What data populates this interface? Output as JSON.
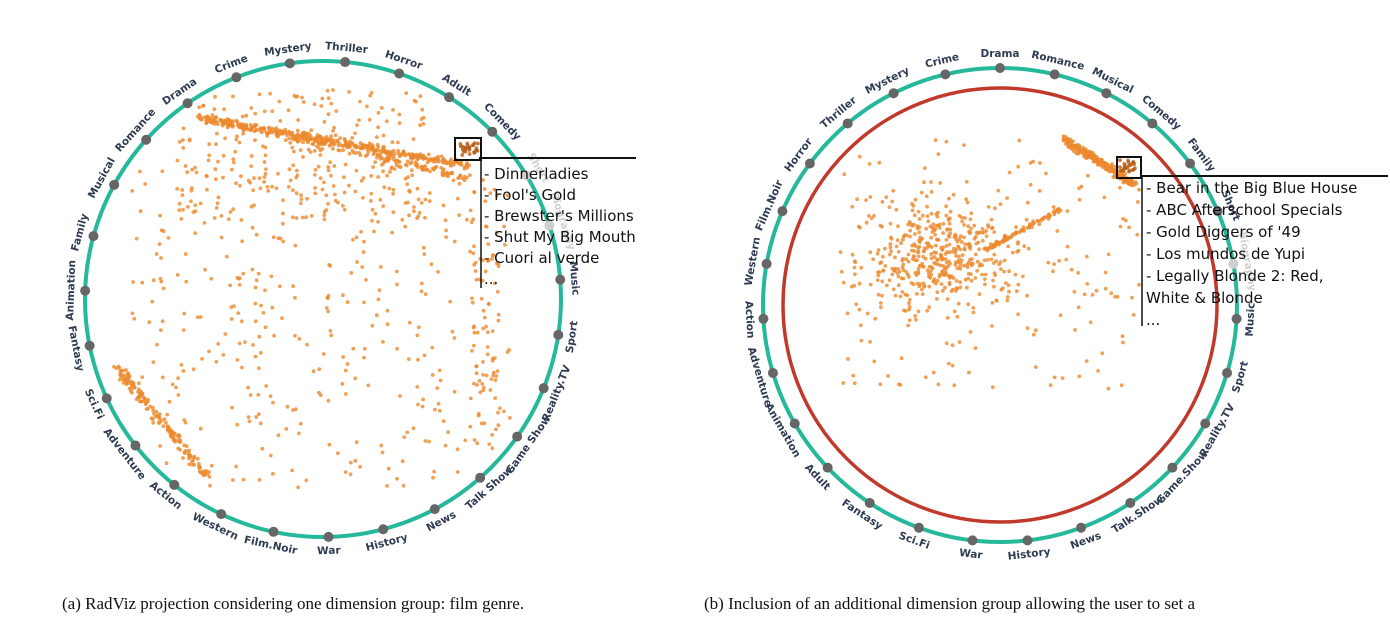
{
  "chart_data": [
    {
      "type": "scatter",
      "subtype": "radviz",
      "anchors": [
        "Mystery",
        "Thriller",
        "Horror",
        "Adult",
        "Comedy",
        "Short",
        "Biography",
        "Music",
        "Sport",
        "Reality.TV",
        "Game Show",
        "Talk Show",
        "News",
        "History",
        "War",
        "Film.Noir",
        "Western",
        "Action",
        "Adventure",
        "Sci.Fi",
        "Fantasy",
        "Animation",
        "Family",
        "Musical",
        "Romance",
        "Drama",
        "Crime"
      ],
      "faded_anchors": [
        "Short",
        "Biography"
      ],
      "selection_list": [
        "- Dinnerladies",
        "- Fool's Gold",
        "- Brewster's Millions",
        "- Shut My Big Mouth",
        "- Cuori al verde",
        "..."
      ],
      "caption": "(a) RadViz projection considering one dimension group: film genre.",
      "colors": {
        "ring": "#26b89a",
        "anchor": "#666666",
        "points": "#ec8a2e"
      }
    },
    {
      "type": "scatter",
      "subtype": "radviz",
      "anchors": [
        "Drama",
        "Romance",
        "Musical",
        "Comedy",
        "Family",
        "Short",
        "Biography",
        "Music",
        "Sport",
        "Reality.TV",
        "Game.Show",
        "Talk.Show",
        "News",
        "History",
        "War",
        "Sci.Fi",
        "Fantasy",
        "Adult",
        "Animation",
        "Adventure",
        "Action",
        "Western",
        "Film.Noir",
        "Horror",
        "Thriller",
        "Mystery",
        "Crime"
      ],
      "faded_anchors": [
        "Biography"
      ],
      "selection_list": [
        "- Bear in the Big Blue House",
        "- ABC Afterschool Specials",
        "- Gold Diggers of '49",
        "- Los mundos de Yupi",
        "- Legally Blonde 2: Red,",
        "White & Blonde",
        "..."
      ],
      "caption": "(b) Inclusion of an additional dimension group allowing the user to set a",
      "colors": {
        "ring": "#26b89a",
        "inner_ring": "#c0392b",
        "anchor": "#666666",
        "points": "#ec8a2e"
      }
    }
  ]
}
